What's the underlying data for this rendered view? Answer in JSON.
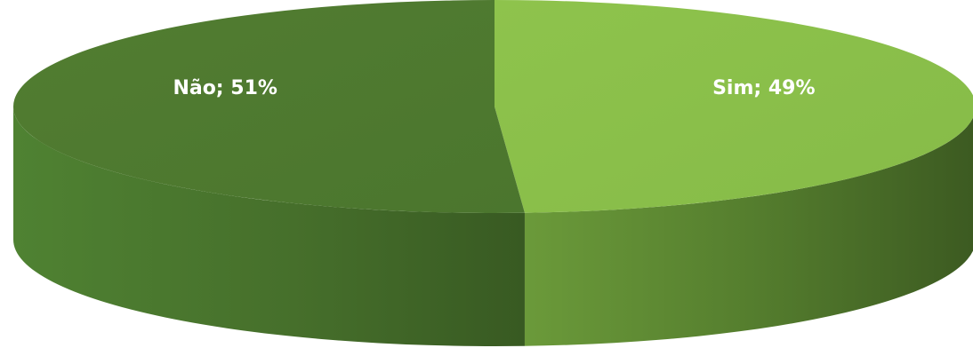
{
  "chart_data": {
    "type": "pie",
    "style": "3d",
    "title": "",
    "slices": [
      {
        "label": "Sim; 49%",
        "category": "Sim",
        "value": 49
      },
      {
        "label": "Não; 51%",
        "category": "Não",
        "value": 51
      }
    ],
    "colors": {
      "Sim_top": "#8bc34a",
      "Sim_side": "#5f8a34",
      "Sim_side_dark": "#3f5e22",
      "Nao_top": "#4f7a30",
      "Nao_side": "#4a7a30",
      "Nao_side_dark": "#375a22",
      "label": "#ffffff"
    },
    "legend": "none"
  }
}
